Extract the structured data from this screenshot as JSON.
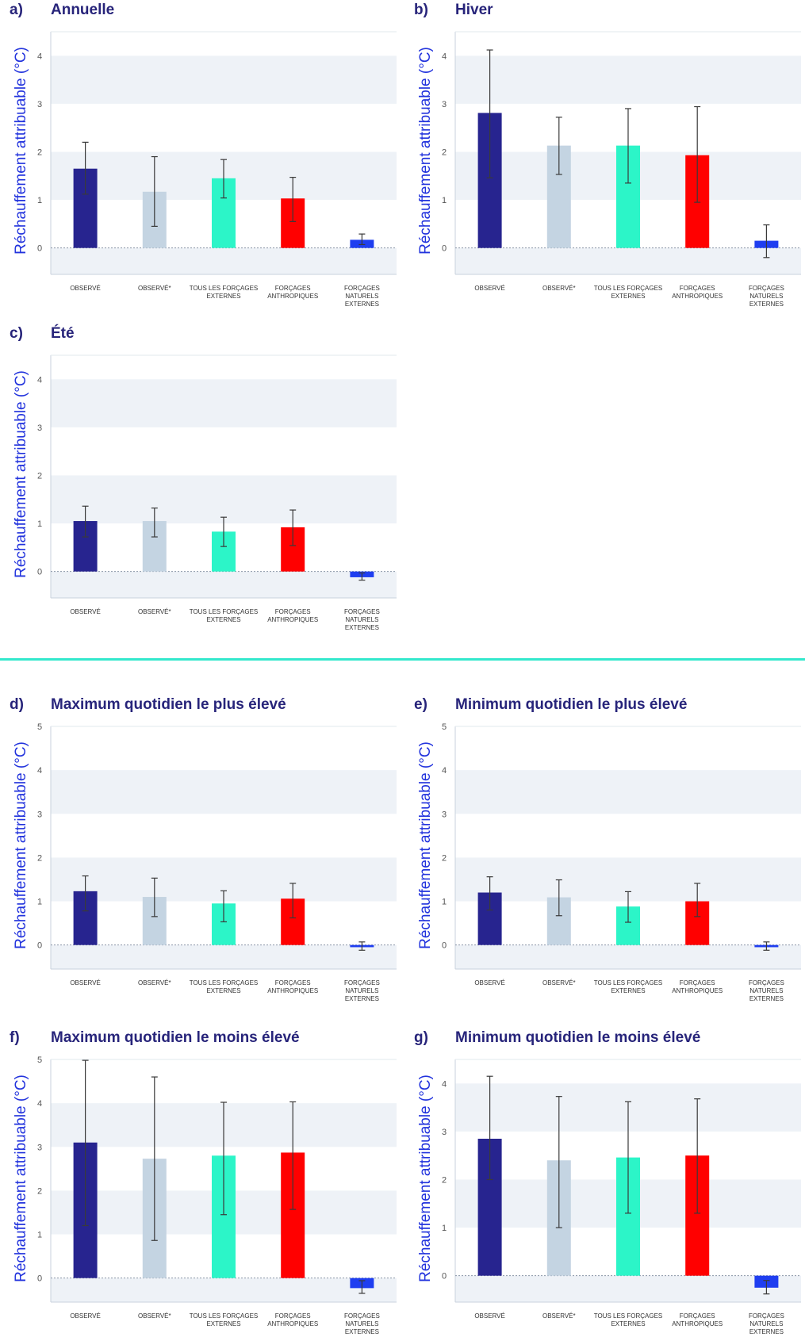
{
  "colors": {
    "observed": "#27248f",
    "observed_star": "#c4d4e2",
    "all_external": "#2cf5c8",
    "anthropogenic": "#ff0000",
    "natural": "#1f3ef0",
    "band": "#eef2f7",
    "divider": "#33e8cc",
    "title": "#27247a",
    "ylabel": "#2233dd"
  },
  "chart_data": [
    {
      "id": "a",
      "letter": "a)",
      "title": "Annuelle",
      "type": "bar",
      "ylabel": "Réchauffement attribuable (°C)",
      "ylim": [
        -0.55,
        4.5
      ],
      "yticks": [
        0,
        1,
        2,
        3,
        4
      ],
      "categories": [
        [
          "OBSERVÉ"
        ],
        [
          "OBSERVÉ*"
        ],
        [
          "TOUS LES FORÇAGES",
          "EXTERNES"
        ],
        [
          "FORÇAGES",
          "ANTHROPIQUES"
        ],
        [
          "FORÇAGES",
          "NATURELS",
          "EXTERNES"
        ]
      ],
      "values": [
        1.65,
        1.17,
        1.45,
        1.03,
        0.17
      ],
      "err_low": [
        1.12,
        0.45,
        1.04,
        0.55,
        0.07
      ],
      "err_high": [
        2.2,
        1.9,
        1.84,
        1.47,
        0.29
      ]
    },
    {
      "id": "b",
      "letter": "b)",
      "title": "Hiver",
      "type": "bar",
      "ylabel": "Réchauffement attribuable (°C)",
      "ylim": [
        -0.55,
        4.5
      ],
      "yticks": [
        0,
        1,
        2,
        3,
        4
      ],
      "categories": [
        [
          "OBSERVÉ"
        ],
        [
          "OBSERVÉ*"
        ],
        [
          "TOUS LES FORÇAGES",
          "EXTERNES"
        ],
        [
          "FORÇAGES",
          "ANTHROPIQUES"
        ],
        [
          "FORÇAGES",
          "NATURELS",
          "EXTERNES"
        ]
      ],
      "values": [
        2.81,
        2.13,
        2.13,
        1.93,
        0.15
      ],
      "err_low": [
        1.46,
        1.53,
        1.35,
        0.95,
        -0.2
      ],
      "err_high": [
        4.12,
        2.72,
        2.9,
        2.94,
        0.48
      ]
    },
    {
      "id": "c",
      "letter": "c)",
      "title": "Été",
      "type": "bar",
      "ylabel": "Réchauffement attribuable (°C)",
      "ylim": [
        -0.55,
        4.5
      ],
      "yticks": [
        0,
        1,
        2,
        3,
        4
      ],
      "categories": [
        [
          "OBSERVÉ"
        ],
        [
          "OBSERVÉ*"
        ],
        [
          "TOUS LES FORÇAGES",
          "EXTERNES"
        ],
        [
          "FORÇAGES",
          "ANTHROPIQUES"
        ],
        [
          "FORÇAGES",
          "NATURELS",
          "EXTERNES"
        ]
      ],
      "values": [
        1.05,
        1.05,
        0.83,
        0.92,
        -0.12
      ],
      "err_low": [
        0.72,
        0.72,
        0.52,
        0.54,
        -0.18
      ],
      "err_high": [
        1.36,
        1.32,
        1.13,
        1.28,
        -0.03
      ]
    },
    {
      "id": "d",
      "letter": "d)",
      "title": "Maximum quotidien le plus élevé",
      "type": "bar",
      "ylabel": "Réchauffement attribuable (°C)",
      "ylim": [
        -0.55,
        5
      ],
      "yticks": [
        0,
        1,
        2,
        3,
        4,
        5
      ],
      "categories": [
        [
          "OBSERVÉ"
        ],
        [
          "OBSERVÉ*"
        ],
        [
          "TOUS LES FORÇAGES",
          "EXTERNES"
        ],
        [
          "FORÇAGES",
          "ANTHROPIQUES"
        ],
        [
          "FORÇAGES",
          "NATURELS",
          "EXTERNES"
        ]
      ],
      "values": [
        1.23,
        1.1,
        0.95,
        1.06,
        -0.05
      ],
      "err_low": [
        0.78,
        0.65,
        0.53,
        0.62,
        -0.12
      ],
      "err_high": [
        1.58,
        1.53,
        1.24,
        1.41,
        0.07
      ]
    },
    {
      "id": "e",
      "letter": "e)",
      "title": "Minimum quotidien le plus élevé",
      "type": "bar",
      "ylabel": "Réchauffement attribuable (°C)",
      "ylim": [
        -0.55,
        5
      ],
      "yticks": [
        0,
        1,
        2,
        3,
        4,
        5
      ],
      "categories": [
        [
          "OBSERVÉ"
        ],
        [
          "OBSERVÉ*"
        ],
        [
          "TOUS LES FORÇAGES",
          "EXTERNES"
        ],
        [
          "FORÇAGES",
          "ANTHROPIQUES"
        ],
        [
          "FORÇAGES",
          "NATURELS",
          "EXTERNES"
        ]
      ],
      "values": [
        1.2,
        1.09,
        0.88,
        1.0,
        -0.05
      ],
      "err_low": [
        0.8,
        0.67,
        0.52,
        0.65,
        -0.12
      ],
      "err_high": [
        1.56,
        1.49,
        1.22,
        1.41,
        0.07
      ]
    },
    {
      "id": "f",
      "letter": "f)",
      "title": "Maximum quotidien le moins élevé",
      "type": "bar",
      "ylabel": "Réchauffement attribuable (°C)",
      "ylim": [
        -0.55,
        5
      ],
      "yticks": [
        0,
        1,
        2,
        3,
        4,
        5
      ],
      "categories": [
        [
          "OBSERVÉ"
        ],
        [
          "OBSERVÉ*"
        ],
        [
          "TOUS LES FORÇAGES",
          "EXTERNES"
        ],
        [
          "FORÇAGES",
          "ANTHROPIQUES"
        ],
        [
          "FORÇAGES",
          "NATURELS",
          "EXTERNES"
        ]
      ],
      "values": [
        3.1,
        2.73,
        2.8,
        2.87,
        -0.23
      ],
      "err_low": [
        1.2,
        0.86,
        1.45,
        1.57,
        -0.35
      ],
      "err_high": [
        4.98,
        4.6,
        4.02,
        4.03,
        -0.06
      ]
    },
    {
      "id": "g",
      "letter": "g)",
      "title": "Minimum quotidien le moins élevé",
      "type": "bar",
      "ylabel": "Réchauffement attribuable (°C)",
      "ylim": [
        -0.55,
        4.5
      ],
      "yticks": [
        0,
        1,
        2,
        3,
        4
      ],
      "categories": [
        [
          "OBSERVÉ"
        ],
        [
          "OBSERVÉ*"
        ],
        [
          "TOUS LES FORÇAGES",
          "EXTERNES"
        ],
        [
          "FORÇAGES",
          "ANTHROPIQUES"
        ],
        [
          "FORÇAGES",
          "NATURELS",
          "EXTERNES"
        ]
      ],
      "values": [
        2.85,
        2.4,
        2.46,
        2.5,
        -0.25
      ],
      "err_low": [
        2.0,
        1.0,
        1.3,
        1.3,
        -0.38
      ],
      "err_high": [
        4.15,
        3.73,
        3.62,
        3.68,
        -0.1
      ]
    }
  ]
}
